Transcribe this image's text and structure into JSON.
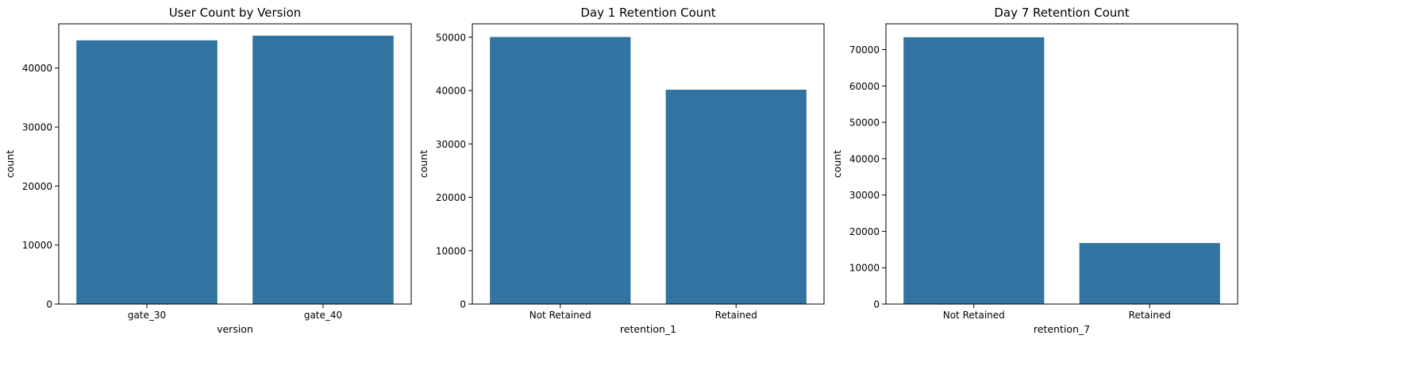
{
  "colors": {
    "bar": "#3274a1",
    "axis": "#000000",
    "background": "#ffffff"
  },
  "chart_data": [
    {
      "type": "bar",
      "title": "User Count by Version",
      "xlabel": "version",
      "ylabel": "count",
      "categories": [
        "gate_30",
        "gate_40"
      ],
      "values": [
        44700,
        45489
      ],
      "ylim": [
        0,
        47500
      ],
      "yticks": [
        0,
        10000,
        20000,
        30000,
        40000
      ],
      "grid": false
    },
    {
      "type": "bar",
      "title": "Day 1 Retention Count",
      "xlabel": "retention_1",
      "ylabel": "count",
      "categories": [
        "Not Retained",
        "Retained"
      ],
      "values": [
        50036,
        40153
      ],
      "ylim": [
        0,
        52500
      ],
      "yticks": [
        0,
        10000,
        20000,
        30000,
        40000,
        50000
      ],
      "grid": false
    },
    {
      "type": "bar",
      "title": "Day 7 Retention Count",
      "xlabel": "retention_7",
      "ylabel": "count",
      "categories": [
        "Not Retained",
        "Retained"
      ],
      "values": [
        73408,
        16781
      ],
      "ylim": [
        0,
        77100
      ],
      "yticks": [
        0,
        10000,
        20000,
        30000,
        40000,
        50000,
        60000,
        70000
      ],
      "grid": false
    }
  ]
}
